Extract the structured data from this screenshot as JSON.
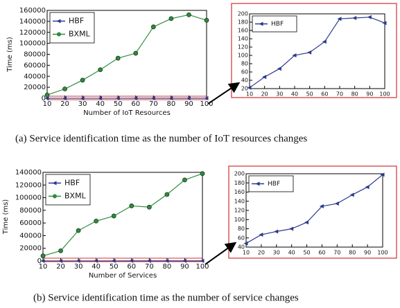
{
  "chart_data": [
    {
      "type": "line",
      "ylabel": "Time (ms)",
      "xlabel": "Number of IoT Resources",
      "x": [
        10,
        20,
        30,
        40,
        50,
        60,
        70,
        80,
        90,
        100
      ],
      "xlim": [
        10,
        100
      ],
      "xticks": [
        10,
        20,
        30,
        40,
        50,
        60,
        70,
        80,
        90,
        100
      ],
      "ylim": [
        0,
        160000
      ],
      "yticks": [
        0,
        20000,
        40000,
        60000,
        80000,
        100000,
        120000,
        140000,
        160000
      ],
      "legend": "upper left",
      "series": [
        {
          "name": "HBF",
          "color": "#2b3a8c",
          "marker": "triangle-left",
          "values": [
            22,
            48,
            68,
            100,
            107,
            133,
            188,
            190,
            192,
            178
          ]
        },
        {
          "name": "BXML",
          "color": "#2e8b3e",
          "marker": "circle",
          "values": [
            6000,
            17000,
            33000,
            52000,
            73000,
            82000,
            130000,
            145000,
            152000,
            142000
          ]
        }
      ]
    },
    {
      "type": "line",
      "x": [
        10,
        20,
        30,
        40,
        50,
        60,
        70,
        80,
        90,
        100
      ],
      "xlim": [
        10,
        100
      ],
      "xticks": [
        10,
        20,
        30,
        40,
        50,
        60,
        70,
        80,
        90,
        100
      ],
      "ylim": [
        20,
        200
      ],
      "yticks": [
        20,
        40,
        60,
        80,
        100,
        120,
        140,
        160,
        180,
        200
      ],
      "legend": "upper left",
      "series": [
        {
          "name": "HBF",
          "color": "#2b3a8c",
          "marker": "triangle-left",
          "values": [
            22,
            48,
            68,
            100,
            107,
            133,
            188,
            190,
            192,
            178
          ]
        }
      ]
    },
    {
      "type": "line",
      "ylabel": "Time (ms)",
      "xlabel": "Number of Services",
      "x": [
        10,
        20,
        30,
        40,
        50,
        60,
        70,
        80,
        90,
        100
      ],
      "xlim": [
        10,
        100
      ],
      "xticks": [
        10,
        20,
        30,
        40,
        50,
        60,
        70,
        80,
        90,
        100
      ],
      "ylim": [
        0,
        140000
      ],
      "yticks": [
        0,
        20000,
        40000,
        60000,
        80000,
        100000,
        120000,
        140000
      ],
      "legend": "upper left",
      "series": [
        {
          "name": "HBF",
          "color": "#2b3a8c",
          "marker": "triangle-left",
          "values": [
            48,
            67,
            74,
            80,
            94,
            129,
            135,
            154,
            171,
            198
          ]
        },
        {
          "name": "BXML",
          "color": "#2e8b3e",
          "marker": "circle",
          "values": [
            8000,
            16000,
            48000,
            63000,
            71000,
            87000,
            85000,
            105000,
            128000,
            138000
          ]
        }
      ]
    },
    {
      "type": "line",
      "x": [
        10,
        20,
        30,
        40,
        50,
        60,
        70,
        80,
        90,
        100
      ],
      "xlim": [
        10,
        100
      ],
      "xticks": [
        10,
        20,
        30,
        40,
        50,
        60,
        70,
        80,
        90,
        100
      ],
      "ylim": [
        40,
        200
      ],
      "yticks": [
        40,
        60,
        80,
        100,
        120,
        140,
        160,
        180,
        200
      ],
      "legend": "upper left",
      "series": [
        {
          "name": "HBF",
          "color": "#2b3a8c",
          "marker": "triangle-left",
          "values": [
            48,
            67,
            74,
            80,
            94,
            129,
            135,
            154,
            171,
            198
          ]
        }
      ]
    }
  ],
  "captions": [
    "(a) Service identification time as the number of IoT resources changes",
    "(b) Service identification time as the number of service changes"
  ]
}
